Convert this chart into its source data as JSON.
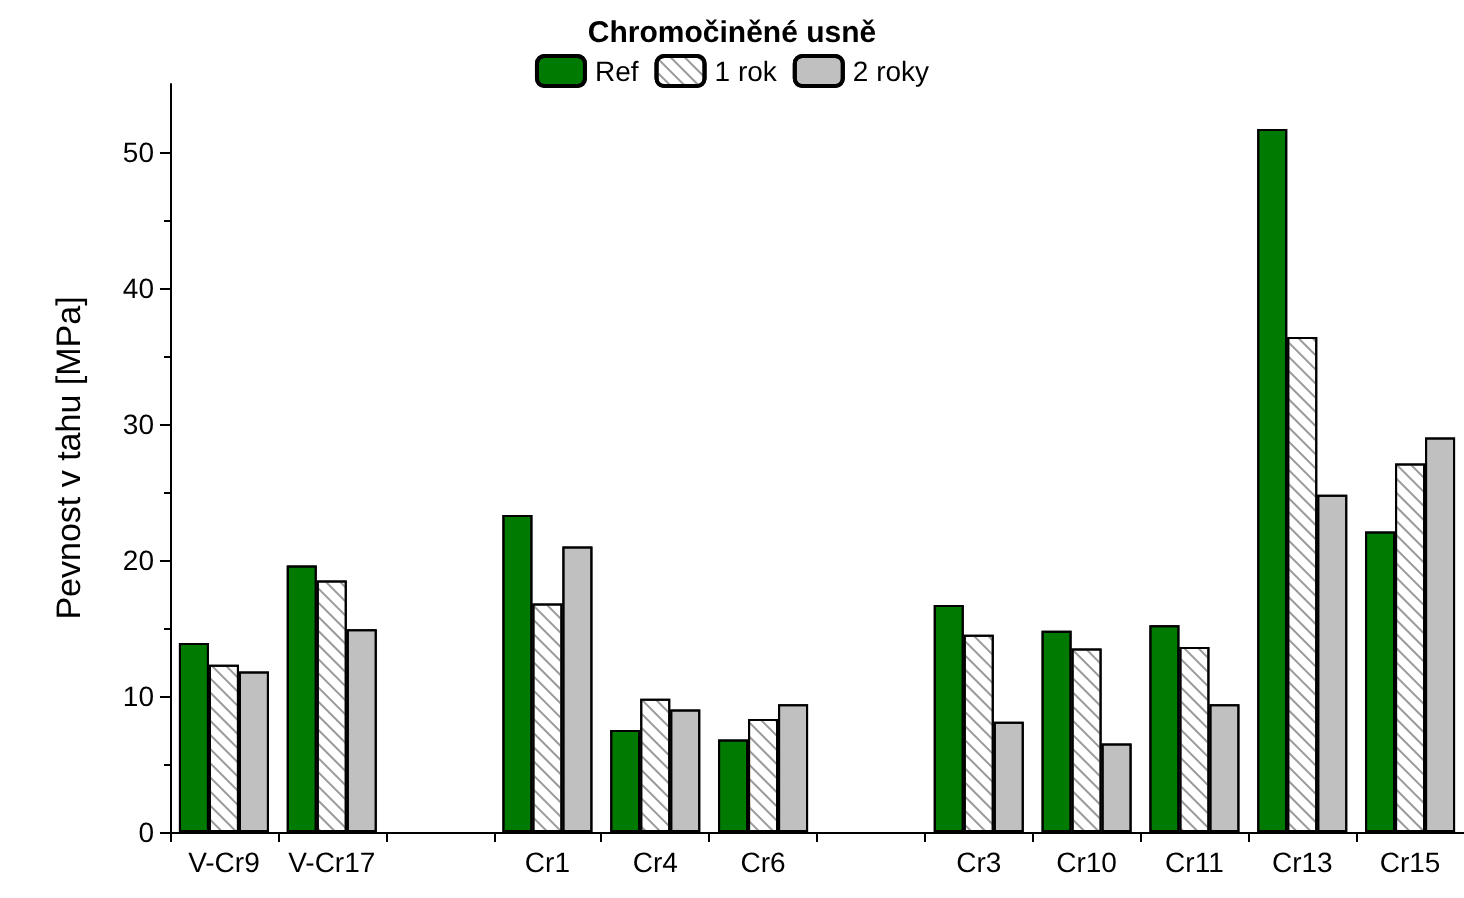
{
  "chart_data": {
    "type": "bar",
    "title": "Chromočiněné usně",
    "ylabel": "Pevnost v tahu [MPa]",
    "categories": [
      "V-Cr9",
      "V-Cr17",
      null,
      "Cr1",
      "Cr4",
      "Cr6",
      null,
      "Cr3",
      "Cr10",
      "Cr11",
      "Cr13",
      "Cr15"
    ],
    "series": [
      {
        "name": "Ref",
        "color": "#007a00",
        "values": [
          13.9,
          19.6,
          null,
          23.3,
          7.5,
          6.8,
          null,
          16.7,
          14.8,
          15.2,
          51.7,
          22.1
        ]
      },
      {
        "name": "1 rok",
        "color": "#ffffff",
        "values": [
          12.3,
          18.5,
          null,
          16.8,
          9.8,
          8.3,
          null,
          14.5,
          13.5,
          13.6,
          36.4,
          27.1
        ]
      },
      {
        "name": "2 roky",
        "color": "#c0c0c0",
        "values": [
          11.8,
          14.9,
          null,
          21.0,
          9.0,
          9.4,
          null,
          8.1,
          6.5,
          9.4,
          24.8,
          29.0
        ]
      }
    ],
    "ylim": [
      0,
      55
    ],
    "yticks": [
      0,
      10,
      20,
      30,
      40,
      50
    ],
    "grid": false,
    "legend": "top"
  }
}
